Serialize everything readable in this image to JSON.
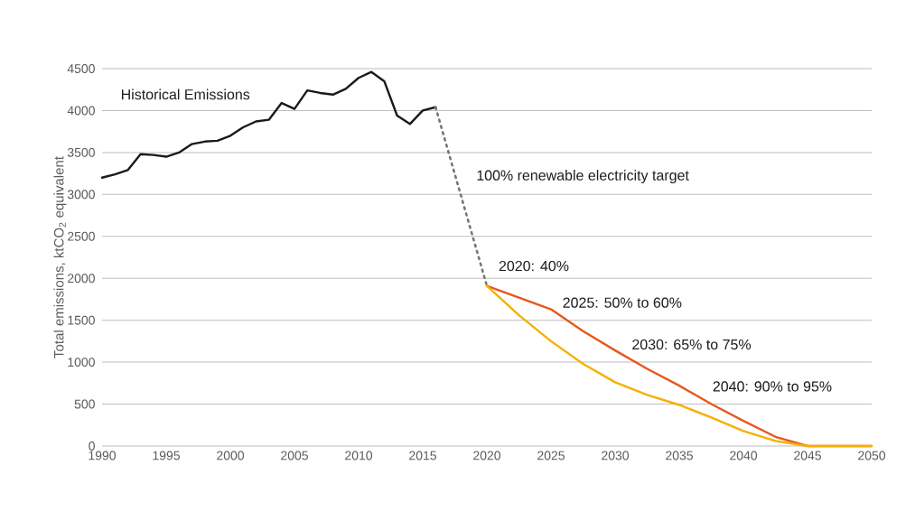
{
  "chart_data": {
    "type": "line",
    "ylabel": "Total emissions, ktCO$_{2}$ equivalent",
    "xlim": [
      1990,
      2050
    ],
    "xticks": [
      1990,
      1995,
      2000,
      2005,
      2010,
      2015,
      2020,
      2025,
      2030,
      2035,
      2040,
      2045,
      2050
    ],
    "ylim": [
      0,
      4500
    ],
    "yticks": [
      0,
      500,
      1000,
      1500,
      2000,
      2500,
      3000,
      3500,
      4000,
      4500
    ],
    "grid": "y",
    "marker": "none",
    "series": [
      {
        "color": "#1a1a1a",
        "line_style": "solid",
        "x": [
          1990,
          1991,
          1992,
          1993,
          1994,
          1995,
          1996,
          1997,
          1998,
          1999,
          2000,
          2001,
          2002,
          2003,
          2004,
          2005,
          2006,
          2007,
          2008,
          2009,
          2010,
          2011,
          2012,
          2013,
          2014,
          2015,
          2016
        ],
        "values": [
          3200,
          3240,
          3290,
          3480,
          3470,
          3450,
          3500,
          3600,
          3630,
          3640,
          3700,
          3800,
          3870,
          3890,
          4090,
          4020,
          4240,
          4210,
          4190,
          4260,
          4390,
          4460,
          4350,
          3940,
          3840,
          4000,
          4040
        ]
      },
      {
        "color": "#777777",
        "line_style": "dotted",
        "x": [
          2016,
          2020
        ],
        "values": [
          4040,
          1910
        ]
      },
      {
        "color": "#e8581c",
        "line_style": "solid",
        "x": [
          2020,
          2022.5,
          2025,
          2027.5,
          2030,
          2032.5,
          2035,
          2037.5,
          2040,
          2042.5,
          2045,
          2047,
          2050
        ],
        "values": [
          1910,
          1770,
          1630,
          1370,
          1140,
          920,
          720,
          500,
          300,
          110,
          0,
          null,
          0
        ]
      },
      {
        "color": "#f5b000",
        "line_style": "solid",
        "x": [
          2020,
          2022.5,
          2025,
          2027.5,
          2030,
          2032.5,
          2035,
          2037.5,
          2040,
          2042.5,
          2045,
          2047.5,
          2050
        ],
        "values": [
          1910,
          1560,
          1250,
          980,
          760,
          610,
          490,
          340,
          180,
          60,
          0,
          null,
          0
        ]
      }
    ],
    "annotations": [
      "Historical Emissions",
      "100% renewable electricity target",
      "2020: 40%",
      "2025: 50% to 60%",
      "2030: 65% to 75%",
      "2040: 90% to 95%"
    ]
  }
}
